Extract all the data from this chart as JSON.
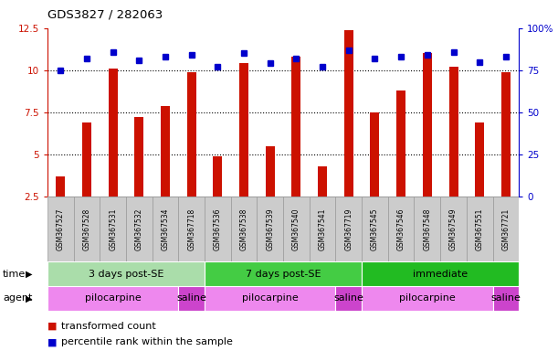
{
  "title": "GDS3827 / 282063",
  "samples": [
    "GSM367527",
    "GSM367528",
    "GSM367531",
    "GSM367532",
    "GSM367534",
    "GSM367718",
    "GSM367536",
    "GSM367538",
    "GSM367539",
    "GSM367540",
    "GSM367541",
    "GSM367719",
    "GSM367545",
    "GSM367546",
    "GSM367548",
    "GSM367549",
    "GSM367551",
    "GSM367721"
  ],
  "bar_values": [
    3.7,
    6.9,
    10.1,
    7.2,
    7.9,
    9.9,
    4.9,
    10.4,
    5.5,
    10.8,
    4.3,
    12.4,
    7.5,
    8.8,
    11.0,
    10.2,
    6.9,
    9.9
  ],
  "dot_values": [
    75,
    82,
    86,
    81,
    83,
    84,
    77,
    85,
    79,
    82,
    77,
    87,
    82,
    83,
    84,
    86,
    80,
    83
  ],
  "bar_color": "#cc1100",
  "dot_color": "#0000cc",
  "ylim_left": [
    2.5,
    12.5
  ],
  "ylim_right": [
    0,
    100
  ],
  "yticks_left": [
    2.5,
    5.0,
    7.5,
    10.0,
    12.5
  ],
  "yticks_right": [
    0,
    25,
    50,
    75,
    100
  ],
  "ytick_labels_left": [
    "2.5",
    "5",
    "7.5",
    "10",
    "12.5"
  ],
  "ytick_labels_right": [
    "0",
    "25",
    "50",
    "75",
    "100%"
  ],
  "hlines": [
    5.0,
    7.5,
    10.0
  ],
  "time_groups": [
    {
      "label": "3 days post-SE",
      "start": 0,
      "end": 6,
      "color": "#aaddaa"
    },
    {
      "label": "7 days post-SE",
      "start": 6,
      "end": 12,
      "color": "#44cc44"
    },
    {
      "label": "immediate",
      "start": 12,
      "end": 18,
      "color": "#22bb22"
    }
  ],
  "agent_groups": [
    {
      "label": "pilocarpine",
      "start": 0,
      "end": 5,
      "color": "#ee88ee"
    },
    {
      "label": "saline",
      "start": 5,
      "end": 6,
      "color": "#cc44cc"
    },
    {
      "label": "pilocarpine",
      "start": 6,
      "end": 11,
      "color": "#ee88ee"
    },
    {
      "label": "saline",
      "start": 11,
      "end": 12,
      "color": "#cc44cc"
    },
    {
      "label": "pilocarpine",
      "start": 12,
      "end": 17,
      "color": "#ee88ee"
    },
    {
      "label": "saline",
      "start": 17,
      "end": 18,
      "color": "#cc44cc"
    }
  ],
  "legend_bar_label": "transformed count",
  "legend_dot_label": "percentile rank within the sample",
  "time_label": "time",
  "agent_label": "agent",
  "bg_color": "#ffffff",
  "plot_bg_color": "#ffffff",
  "sample_box_color": "#cccccc",
  "sample_box_border": "#999999"
}
